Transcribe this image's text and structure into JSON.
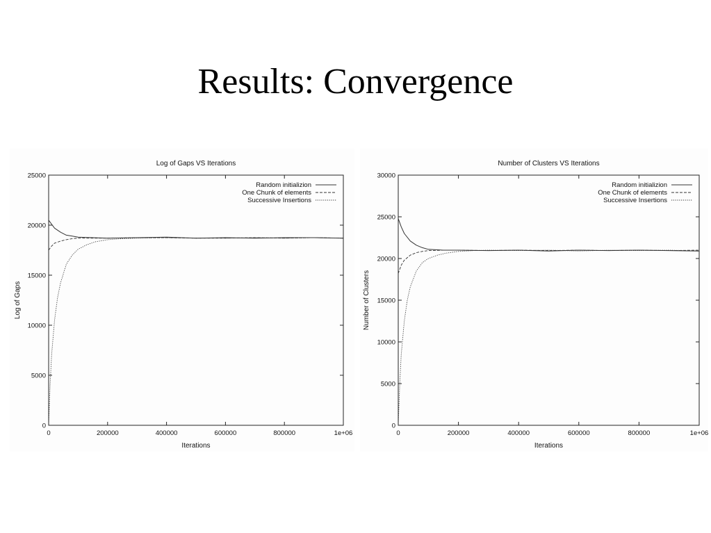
{
  "slide": {
    "title": "Results: Convergence"
  },
  "chart_data": [
    {
      "type": "line",
      "title": "Log of Gaps VS Iterations",
      "xlabel": "Iterations",
      "ylabel": "Log of Gaps",
      "xlim": [
        0,
        1000000
      ],
      "ylim": [
        0,
        25000
      ],
      "xticks": [
        0,
        200000,
        400000,
        600000,
        800000,
        1000000
      ],
      "xtick_labels": [
        "0",
        "200000",
        "400000",
        "600000",
        "800000",
        "1e+06"
      ],
      "yticks": [
        0,
        5000,
        10000,
        15000,
        20000,
        25000
      ],
      "ytick_labels": [
        "0",
        "5000",
        "10000",
        "15000",
        "20000",
        "25000"
      ],
      "grid": false,
      "legend_position": "top-right",
      "series": [
        {
          "name": "Random initializion",
          "style": "solid",
          "x": [
            0,
            10000,
            20000,
            40000,
            60000,
            80000,
            100000,
            150000,
            200000,
            300000,
            400000,
            500000,
            600000,
            700000,
            800000,
            900000,
            1000000
          ],
          "y": [
            20500,
            20100,
            19700,
            19300,
            19000,
            18900,
            18800,
            18750,
            18700,
            18750,
            18800,
            18700,
            18750,
            18700,
            18750,
            18750,
            18700
          ]
        },
        {
          "name": "One Chunk of elements",
          "style": "dashed",
          "x": [
            0,
            10000,
            20000,
            40000,
            60000,
            80000,
            100000,
            150000,
            200000,
            300000,
            400000,
            500000,
            600000,
            700000,
            800000,
            900000,
            1000000
          ],
          "y": [
            17500,
            17900,
            18200,
            18400,
            18550,
            18650,
            18700,
            18700,
            18700,
            18750,
            18750,
            18700,
            18700,
            18750,
            18700,
            18750,
            18700
          ]
        },
        {
          "name": "Successive Insertions",
          "style": "dotted",
          "x": [
            0,
            5000,
            10000,
            20000,
            30000,
            40000,
            60000,
            80000,
            100000,
            130000,
            160000,
            200000,
            250000,
            300000,
            400000,
            500000,
            600000,
            700000,
            800000,
            900000,
            1000000
          ],
          "y": [
            0,
            4000,
            7000,
            10500,
            12700,
            14200,
            16100,
            17000,
            17600,
            18050,
            18350,
            18550,
            18650,
            18700,
            18750,
            18700,
            18700,
            18750,
            18700,
            18750,
            18700
          ]
        }
      ]
    },
    {
      "type": "line",
      "title": "Number of Clusters VS Iterations",
      "xlabel": "Iterations",
      "ylabel": "Number of Clusters",
      "xlim": [
        0,
        1000000
      ],
      "ylim": [
        0,
        30000
      ],
      "xticks": [
        0,
        200000,
        400000,
        600000,
        800000,
        1000000
      ],
      "xtick_labels": [
        "0",
        "200000",
        "400000",
        "600000",
        "800000",
        "1e+06"
      ],
      "yticks": [
        0,
        5000,
        10000,
        15000,
        20000,
        25000,
        30000
      ],
      "ytick_labels": [
        "0",
        "5000",
        "10000",
        "15000",
        "20000",
        "25000",
        "30000"
      ],
      "grid": false,
      "legend_position": "top-right",
      "series": [
        {
          "name": "Random initializion",
          "style": "solid",
          "x": [
            0,
            10000,
            20000,
            40000,
            60000,
            80000,
            100000,
            150000,
            200000,
            300000,
            400000,
            500000,
            600000,
            700000,
            800000,
            900000,
            1000000
          ],
          "y": [
            24800,
            23800,
            23000,
            22100,
            21600,
            21300,
            21100,
            21000,
            21000,
            20950,
            21000,
            20900,
            21000,
            20950,
            21000,
            20950,
            20900
          ]
        },
        {
          "name": "One Chunk of elements",
          "style": "dashed",
          "x": [
            0,
            10000,
            20000,
            40000,
            60000,
            80000,
            100000,
            150000,
            200000,
            300000,
            400000,
            500000,
            600000,
            700000,
            800000,
            900000,
            1000000
          ],
          "y": [
            18200,
            19200,
            19800,
            20400,
            20700,
            20850,
            20950,
            21000,
            21000,
            20950,
            21000,
            20950,
            21000,
            20950,
            21000,
            20950,
            21000
          ]
        },
        {
          "name": "Successive Insertions",
          "style": "dotted",
          "x": [
            0,
            5000,
            10000,
            20000,
            30000,
            40000,
            60000,
            80000,
            100000,
            130000,
            160000,
            200000,
            250000,
            300000,
            400000,
            500000,
            600000,
            700000,
            800000,
            900000,
            1000000
          ],
          "y": [
            0,
            5000,
            8500,
            12500,
            15000,
            16600,
            18500,
            19500,
            20000,
            20400,
            20650,
            20850,
            20950,
            21000,
            20950,
            21000,
            20900,
            21000,
            20950,
            21000,
            20900
          ]
        }
      ]
    }
  ]
}
